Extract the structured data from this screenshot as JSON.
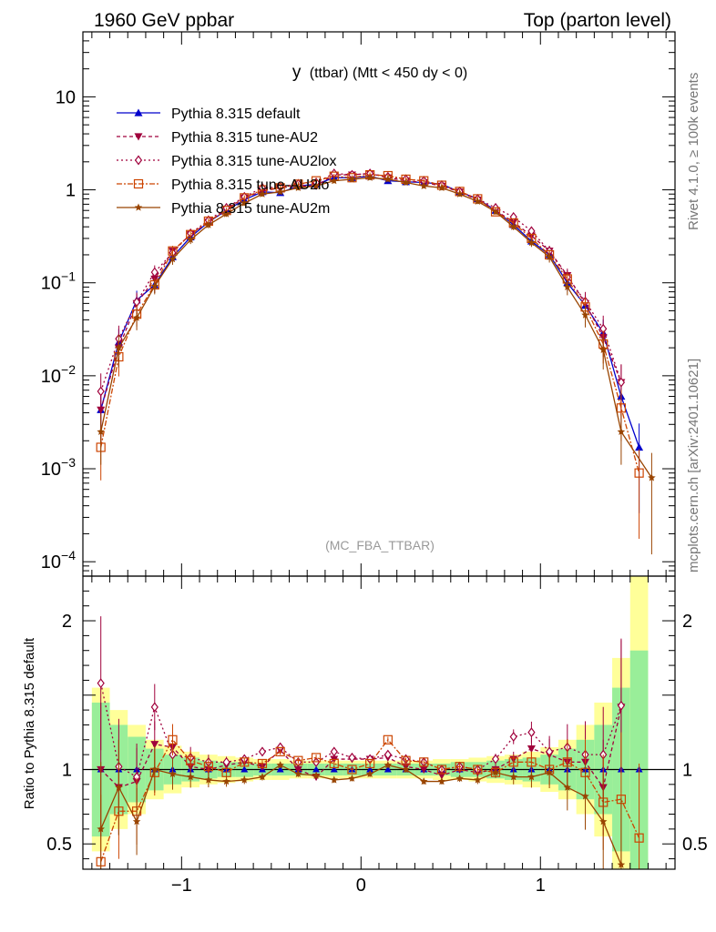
{
  "header": {
    "left": "1960 GeV ppbar",
    "right": "Top (parton level)"
  },
  "side_labels": {
    "rivet": "Rivet 4.1.0, ≥ 100k events",
    "mcplots": "mcplots.cern.ch [arXiv:2401.10621]"
  },
  "chart_data": [
    {
      "type": "line",
      "title_main": "y",
      "title_rest": "(ttbar) (Mtt < 450 dy < 0)",
      "watermark": "(MC_FBA_TTBAR)",
      "xlabel": "",
      "ylabel": "",
      "yscale": "log",
      "xlim": [
        -1.55,
        1.75
      ],
      "ylim": [
        7e-05,
        50
      ],
      "y_ticks": [
        {
          "v": 10,
          "label": "10"
        },
        {
          "v": 1,
          "label": "1"
        },
        {
          "v": 0.1,
          "base": "10",
          "exp": "−1"
        },
        {
          "v": 0.01,
          "base": "10",
          "exp": "−2"
        },
        {
          "v": 0.001,
          "base": "10",
          "exp": "−3"
        },
        {
          "v": 0.0001,
          "base": "10",
          "exp": "−4"
        }
      ],
      "x_ticks": [
        {
          "v": -1,
          "label": "−1"
        },
        {
          "v": 0,
          "label": "0"
        },
        {
          "v": 1,
          "label": "1"
        }
      ],
      "legend": "top-left",
      "series": [
        {
          "name": "Pythia 8.315 default",
          "color": "#0000cc",
          "dash": "",
          "marker": "triangle-up",
          "x": [
            -1.45,
            -1.35,
            -1.25,
            -1.15,
            -1.05,
            -0.95,
            -0.85,
            -0.75,
            -0.65,
            -0.55,
            -0.45,
            -0.35,
            -0.25,
            -0.15,
            -0.05,
            0.05,
            0.15,
            0.25,
            0.35,
            0.45,
            0.55,
            0.65,
            0.75,
            0.85,
            0.95,
            1.05,
            1.15,
            1.25,
            1.35,
            1.45,
            1.55
          ],
          "y": [
            0.0043,
            0.023,
            0.065,
            0.095,
            0.19,
            0.31,
            0.45,
            0.6,
            0.78,
            0.95,
            0.93,
            1.1,
            1.15,
            1.35,
            1.35,
            1.4,
            1.25,
            1.22,
            1.2,
            1.15,
            0.95,
            0.8,
            0.6,
            0.42,
            0.28,
            0.2,
            0.1,
            0.057,
            0.029,
            0.006,
            0.0017
          ]
        },
        {
          "name": "Pythia 8.315 tune-AU2",
          "color": "#a0003c",
          "dash": "4,3",
          "marker": "triangle-down",
          "x": [
            -1.45,
            -1.35,
            -1.25,
            -1.15,
            -1.05,
            -0.95,
            -0.85,
            -0.75,
            -0.65,
            -0.55,
            -0.45,
            -0.35,
            -0.25,
            -0.15,
            -0.05,
            0.05,
            0.15,
            0.25,
            0.35,
            0.45,
            0.55,
            0.65,
            0.75,
            0.85,
            0.95,
            1.05,
            1.15,
            1.25,
            1.35,
            1.45
          ],
          "y": [
            0.0043,
            0.02,
            0.06,
            0.11,
            0.22,
            0.33,
            0.45,
            0.62,
            0.82,
            0.97,
            1.05,
            1.1,
            1.1,
            1.45,
            1.45,
            1.5,
            1.35,
            1.25,
            1.2,
            1.1,
            0.95,
            0.78,
            0.6,
            0.45,
            0.32,
            0.22,
            0.12,
            0.06,
            0.026,
            0.0085
          ]
        },
        {
          "name": "Pythia 8.315 tune-AU2lox",
          "color": "#a0003c",
          "dash": "2,3",
          "marker": "diamond",
          "x": [
            -1.45,
            -1.35,
            -1.25,
            -1.15,
            -1.05,
            -0.95,
            -0.85,
            -0.75,
            -0.65,
            -0.55,
            -0.45,
            -0.35,
            -0.25,
            -0.15,
            -0.05,
            0.05,
            0.15,
            0.25,
            0.35,
            0.45,
            0.55,
            0.65,
            0.75,
            0.85,
            0.95,
            1.05,
            1.15,
            1.25,
            1.35,
            1.45
          ],
          "y": [
            0.0068,
            0.025,
            0.062,
            0.13,
            0.21,
            0.34,
            0.47,
            0.64,
            0.84,
            1.05,
            1.07,
            1.16,
            1.2,
            1.5,
            1.45,
            1.5,
            1.38,
            1.3,
            1.25,
            1.12,
            0.96,
            0.8,
            0.64,
            0.51,
            0.36,
            0.22,
            0.115,
            0.063,
            0.032,
            0.0085
          ]
        },
        {
          "name": "Pythia 8.315 tune-AU2lo",
          "color": "#cc4400",
          "dash": "6,2,2,2",
          "marker": "square-open",
          "x": [
            -1.45,
            -1.35,
            -1.25,
            -1.15,
            -1.05,
            -0.95,
            -0.85,
            -0.75,
            -0.65,
            -0.55,
            -0.45,
            -0.35,
            -0.25,
            -0.15,
            -0.05,
            0.05,
            0.15,
            0.25,
            0.35,
            0.45,
            0.55,
            0.65,
            0.75,
            0.85,
            0.95,
            1.05,
            1.15,
            1.25,
            1.35,
            1.45,
            1.55
          ],
          "y": [
            0.0017,
            0.016,
            0.046,
            0.095,
            0.22,
            0.33,
            0.46,
            0.6,
            0.82,
            1.0,
            1.05,
            1.15,
            1.25,
            1.4,
            1.35,
            1.45,
            1.42,
            1.3,
            1.25,
            1.12,
            0.96,
            0.8,
            0.58,
            0.44,
            0.3,
            0.2,
            0.11,
            0.055,
            0.022,
            0.0045,
            0.0009
          ]
        },
        {
          "name": "Pythia 8.315 tune-AU2m",
          "color": "#994400",
          "dash": "",
          "marker": "star",
          "x": [
            -1.45,
            -1.35,
            -1.25,
            -1.15,
            -1.05,
            -0.95,
            -0.85,
            -0.75,
            -0.65,
            -0.55,
            -0.45,
            -0.35,
            -0.25,
            -0.15,
            -0.05,
            0.05,
            0.15,
            0.25,
            0.35,
            0.45,
            0.55,
            0.65,
            0.75,
            0.85,
            0.95,
            1.05,
            1.15,
            1.25,
            1.35,
            1.45,
            1.62
          ],
          "y": [
            0.0025,
            0.02,
            0.042,
            0.092,
            0.18,
            0.29,
            0.42,
            0.55,
            0.72,
            0.9,
            0.95,
            1.05,
            1.1,
            1.25,
            1.3,
            1.35,
            1.3,
            1.2,
            1.1,
            1.05,
            0.9,
            0.75,
            0.58,
            0.4,
            0.27,
            0.19,
            0.09,
            0.045,
            0.019,
            0.0025,
            0.0008
          ]
        }
      ]
    },
    {
      "type": "line",
      "title": "",
      "ylabel": "Ratio to Pythia 8.315 default",
      "xlim": [
        -1.55,
        1.75
      ],
      "ylim": [
        0.33,
        2.3
      ],
      "y_ticks": [
        {
          "v": 0.5,
          "label": "0.5"
        },
        {
          "v": 1,
          "label": "1"
        },
        {
          "v": 2,
          "label": "2"
        }
      ],
      "x_ticks": [
        {
          "v": -1,
          "label": "−1"
        },
        {
          "v": 0,
          "label": "0"
        },
        {
          "v": 1,
          "label": "1"
        }
      ],
      "bin_edges": [
        -1.5,
        -1.4,
        -1.3,
        -1.2,
        -1.1,
        -1.0,
        -0.9,
        -0.8,
        -0.7,
        -0.6,
        -0.5,
        -0.4,
        -0.3,
        -0.2,
        -0.1,
        0.0,
        0.1,
        0.2,
        0.3,
        0.4,
        0.5,
        0.6,
        0.7,
        0.8,
        0.9,
        1.0,
        1.1,
        1.2,
        1.3,
        1.4,
        1.5,
        1.6
      ],
      "band_yellow_halfwidth": [
        0.55,
        0.4,
        0.3,
        0.2,
        0.16,
        0.12,
        0.1,
        0.09,
        0.08,
        0.07,
        0.07,
        0.06,
        0.06,
        0.06,
        0.06,
        0.06,
        0.06,
        0.06,
        0.06,
        0.07,
        0.07,
        0.08,
        0.09,
        0.1,
        0.12,
        0.15,
        0.2,
        0.3,
        0.45,
        0.75,
        1.3
      ],
      "band_green_halfwidth": [
        0.45,
        0.3,
        0.22,
        0.14,
        0.1,
        0.08,
        0.06,
        0.05,
        0.05,
        0.04,
        0.04,
        0.04,
        0.04,
        0.04,
        0.04,
        0.04,
        0.04,
        0.04,
        0.04,
        0.04,
        0.05,
        0.05,
        0.06,
        0.07,
        0.08,
        0.1,
        0.14,
        0.2,
        0.3,
        0.55,
        0.8
      ],
      "series": [
        {
          "name": "Pythia 8.315 tune-AU2",
          "color": "#a0003c",
          "dash": "4,3",
          "marker": "triangle-down",
          "x": [
            -1.45,
            -1.35,
            -1.25,
            -1.15,
            -1.05,
            -0.95,
            -0.85,
            -0.75,
            -0.65,
            -0.55,
            -0.45,
            -0.35,
            -0.25,
            -0.15,
            -0.05,
            0.05,
            0.15,
            0.25,
            0.35,
            0.45,
            0.55,
            0.65,
            0.75,
            0.85,
            0.95,
            1.05,
            1.15,
            1.25,
            1.35,
            1.45
          ],
          "y": [
            1.0,
            0.88,
            0.92,
            1.17,
            1.15,
            1.02,
            1.0,
            1.03,
            1.05,
            1.02,
            1.13,
            1.0,
            0.95,
            1.07,
            1.07,
            1.07,
            1.08,
            1.02,
            1.0,
            0.96,
            1.0,
            0.98,
            1.0,
            1.07,
            1.14,
            1.1,
            1.05,
            1.05,
            0.88,
            1.42
          ]
        },
        {
          "name": "Pythia 8.315 tune-AU2lox",
          "color": "#a0003c",
          "dash": "2,3",
          "marker": "diamond",
          "x": [
            -1.45,
            -1.35,
            -1.25,
            -1.15,
            -1.05,
            -0.95,
            -0.85,
            -0.75,
            -0.65,
            -0.55,
            -0.45,
            -0.35,
            -0.25,
            -0.15,
            -0.05,
            0.05,
            0.15,
            0.25,
            0.35,
            0.45,
            0.55,
            0.65,
            0.75,
            0.85,
            0.95,
            1.05,
            1.15,
            1.25,
            1.35,
            1.45
          ],
          "y": [
            1.58,
            1.02,
            0.95,
            1.42,
            1.1,
            1.08,
            1.05,
            1.05,
            1.07,
            1.12,
            1.15,
            1.05,
            1.05,
            1.12,
            1.08,
            1.07,
            1.1,
            1.07,
            1.05,
            1.0,
            1.02,
            1.0,
            1.07,
            1.22,
            1.25,
            1.12,
            1.15,
            1.1,
            1.1,
            1.43
          ]
        },
        {
          "name": "Pythia 8.315 tune-AU2lo",
          "color": "#cc4400",
          "dash": "6,2,2,2",
          "marker": "square-open",
          "x": [
            -1.45,
            -1.35,
            -1.25,
            -1.15,
            -1.05,
            -0.95,
            -0.85,
            -0.75,
            -0.65,
            -0.55,
            -0.45,
            -0.35,
            -0.25,
            -0.15,
            -0.05,
            0.05,
            0.15,
            0.25,
            0.35,
            0.45,
            0.55,
            0.65,
            0.75,
            0.85,
            0.95,
            1.05,
            1.15,
            1.25,
            1.35,
            1.45,
            1.55
          ],
          "y": [
            0.38,
            0.72,
            0.72,
            0.98,
            1.2,
            1.06,
            1.02,
            0.98,
            1.05,
            1.04,
            1.12,
            1.06,
            1.08,
            1.04,
            1.0,
            1.04,
            1.2,
            1.06,
            1.05,
            1.0,
            1.02,
            1.0,
            0.98,
            1.05,
            1.05,
            1.0,
            1.05,
            0.98,
            0.78,
            0.8,
            0.54
          ]
        },
        {
          "name": "Pythia 8.315 tune-AU2m",
          "color": "#994400",
          "dash": "",
          "marker": "star",
          "x": [
            -1.45,
            -1.35,
            -1.25,
            -1.15,
            -1.05,
            -0.95,
            -0.85,
            -0.75,
            -0.65,
            -0.55,
            -0.45,
            -0.35,
            -0.25,
            -0.15,
            -0.05,
            0.05,
            0.15,
            0.25,
            0.35,
            0.45,
            0.55,
            0.65,
            0.75,
            0.85,
            0.95,
            1.05,
            1.15,
            1.25,
            1.35,
            1.45
          ],
          "y": [
            0.6,
            0.88,
            0.65,
            1.0,
            0.97,
            0.95,
            0.93,
            0.92,
            0.93,
            0.95,
            1.03,
            0.97,
            0.96,
            0.93,
            0.94,
            0.97,
            1.03,
            1.0,
            0.92,
            0.92,
            0.94,
            0.93,
            0.98,
            0.95,
            0.95,
            0.98,
            0.88,
            0.82,
            0.65,
            0.36
          ]
        }
      ]
    }
  ]
}
